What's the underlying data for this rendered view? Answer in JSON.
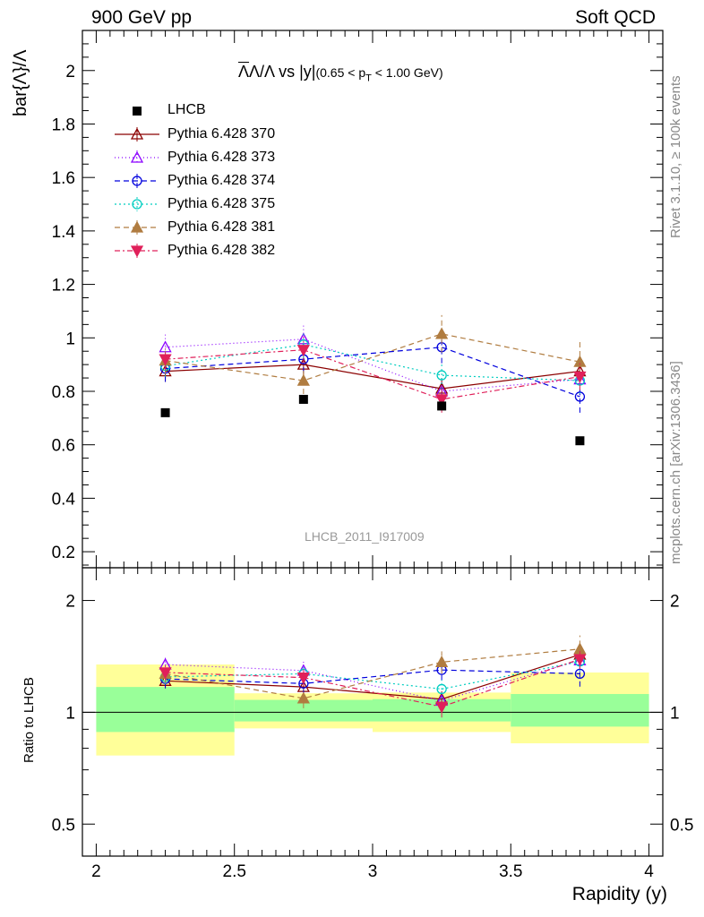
{
  "header": {
    "left": "900 GeV pp",
    "right": "Soft QCD"
  },
  "side_labels": {
    "rivet": "Rivet 3.1.10, ≥ 100k events",
    "mcplots": "mcplots.cern.ch [arXiv:1306.3436]"
  },
  "chart_data": [
    {
      "type": "scatter",
      "title_main": "Λ/Λ vs |y|",
      "title_sub": "(0.65 < p",
      "title_sub_index": "T",
      "title_sub_tail": " < 1.00 GeV)",
      "ylabel": "bar{Λ}/Λ",
      "watermark": "LHCB_2011_I917009",
      "xlim": [
        1.95,
        4.05
      ],
      "ylim": [
        0.14,
        2.15
      ],
      "yticks": [
        0.2,
        0.4,
        0.6,
        0.8,
        1,
        1.2,
        1.4,
        1.6,
        1.8,
        2
      ],
      "ytick_labels": [
        "0.2",
        "0.4",
        "0.6",
        "0.8",
        "1",
        "1.2",
        "1.4",
        "1.6",
        "1.8",
        "2"
      ],
      "x": [
        2.25,
        2.75,
        3.25,
        3.75
      ],
      "data": {
        "name": "LHCB",
        "values": [
          0.72,
          0.77,
          0.745,
          0.615
        ]
      },
      "series": [
        {
          "name": "Pythia 6.428 370",
          "color": "#8b0000",
          "marker": "triangle-up-open",
          "dash": "",
          "values": [
            0.875,
            0.9,
            0.81,
            0.875
          ],
          "errors": [
            0.04,
            0.04,
            0.04,
            0.05
          ]
        },
        {
          "name": "Pythia 6.428 373",
          "color": "#8b00ff",
          "marker": "triangle-up-open",
          "dash": "1 3",
          "values": [
            0.965,
            0.995,
            0.8,
            0.845
          ],
          "errors": [
            0.05,
            0.06,
            0.05,
            0.06
          ]
        },
        {
          "name": "Pythia 6.428 374",
          "color": "#0000dd",
          "marker": "circle-open",
          "dash": "6 4",
          "values": [
            0.885,
            0.92,
            0.965,
            0.78
          ],
          "errors": [
            0.05,
            0.05,
            0.06,
            0.06
          ]
        },
        {
          "name": "Pythia 6.428 375",
          "color": "#00cdc0",
          "marker": "circle-open",
          "dash": "2 3",
          "values": [
            0.895,
            0.975,
            0.86,
            0.84
          ],
          "errors": [
            0.04,
            0.05,
            0.05,
            0.05
          ]
        },
        {
          "name": "Pythia 6.428 381",
          "color": "#b07c40",
          "marker": "triangle-up-filled",
          "dash": "6 4",
          "values": [
            0.915,
            0.84,
            1.015,
            0.91
          ],
          "errors": [
            0.05,
            0.05,
            0.07,
            0.08
          ]
        },
        {
          "name": "Pythia 6.428 382",
          "color": "#e0205a",
          "marker": "triangle-down-filled",
          "dash": "6 3 2 3",
          "values": [
            0.92,
            0.955,
            0.77,
            0.855
          ],
          "errors": [
            0.04,
            0.05,
            0.05,
            0.05
          ]
        }
      ]
    },
    {
      "type": "scatter",
      "ylabel": "Ratio to LHCB",
      "xlabel": "Rapidity (y)",
      "yscale": "log",
      "ylim": [
        0.41,
        2.45
      ],
      "yticks": [
        0.5,
        1,
        2
      ],
      "ytick_labels": [
        "0.5",
        "1",
        "2"
      ],
      "xticks": [
        2,
        2.5,
        3,
        3.5,
        4
      ],
      "xtick_labels": [
        "2",
        "2.5",
        "3",
        "3.5",
        "4"
      ],
      "x": [
        2.25,
        2.75,
        3.25,
        3.75
      ],
      "bins": [
        [
          2.0,
          2.5
        ],
        [
          2.5,
          3.0
        ],
        [
          3.0,
          3.5
        ],
        [
          3.5,
          4.0
        ]
      ],
      "band_1sigma": [
        [
          0.885,
          1.17
        ],
        [
          0.945,
          1.08
        ],
        [
          0.945,
          1.085
        ],
        [
          0.915,
          1.12
        ]
      ],
      "band_2sigma": [
        [
          0.765,
          1.345
        ],
        [
          0.905,
          1.125
        ],
        [
          0.885,
          1.13
        ],
        [
          0.825,
          1.28
        ]
      ],
      "series": [
        {
          "name": "Pythia 6.428 370",
          "values": [
            1.215,
            1.17,
            1.085,
            1.43
          ]
        },
        {
          "name": "Pythia 6.428 373",
          "values": [
            1.345,
            1.295,
            1.075,
            1.38
          ]
        },
        {
          "name": "Pythia 6.428 374",
          "values": [
            1.23,
            1.195,
            1.3,
            1.27
          ]
        },
        {
          "name": "Pythia 6.428 375",
          "values": [
            1.245,
            1.27,
            1.155,
            1.37
          ]
        },
        {
          "name": "Pythia 6.428 381",
          "values": [
            1.27,
            1.09,
            1.365,
            1.48
          ]
        },
        {
          "name": "Pythia 6.428 382",
          "values": [
            1.28,
            1.24,
            1.035,
            1.39
          ]
        }
      ]
    }
  ]
}
